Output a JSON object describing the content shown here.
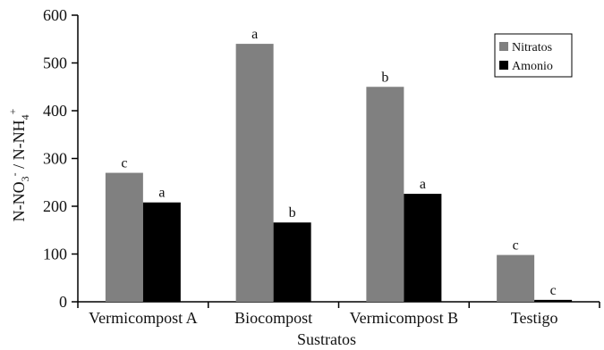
{
  "chart_data": {
    "type": "bar",
    "categories": [
      "Vermicompost A",
      "Biocompost",
      "Vermicompost B",
      "Testigo"
    ],
    "series": [
      {
        "name": "Nitratos",
        "color": "#808080",
        "values": [
          270,
          540,
          450,
          98
        ],
        "significance": [
          "c",
          "a",
          "b",
          "c"
        ]
      },
      {
        "name": "Amonio",
        "color": "#000000",
        "values": [
          208,
          166,
          226,
          4
        ],
        "significance": [
          "a",
          "b",
          "a",
          "c"
        ]
      }
    ],
    "xlabel": "Sustratos",
    "ylabel": "N-NO3- / N-NH4+",
    "ylabel_parts": {
      "a": "N-NO",
      "a_sub": "3",
      "a_sup": "-",
      "sep": " / N-NH",
      "b_sub": "4",
      "b_sup": "+"
    },
    "ylim": [
      0,
      600
    ],
    "yticks": [
      0,
      100,
      200,
      300,
      400,
      500,
      600
    ],
    "grid": false,
    "legend_position": "top-right"
  }
}
